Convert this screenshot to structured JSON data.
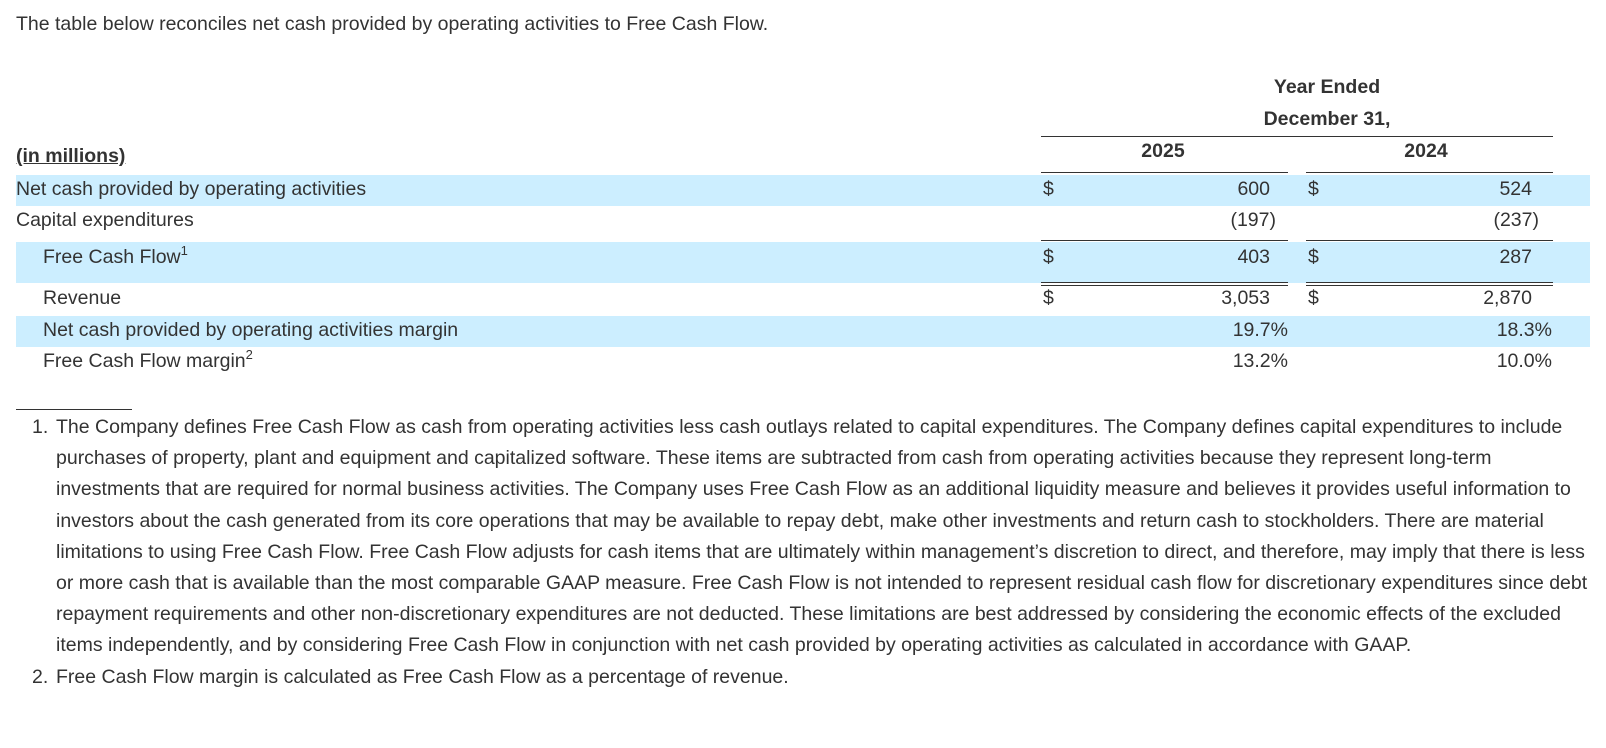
{
  "intro": "The table below reconciles net cash provided by operating activities to Free Cash Flow.",
  "table": {
    "header_line1": "Year Ended",
    "header_line2": "December 31,",
    "years": [
      "2025",
      "2024"
    ],
    "units_label": "(in millions)",
    "rows": [
      {
        "label": "Net cash provided by operating activities",
        "sup": "",
        "d1": "$",
        "v1": "600",
        "d2": "$",
        "v2": "524"
      },
      {
        "label": "Capital expenditures",
        "sup": "",
        "d1": "",
        "v1": "(197)",
        "d2": "",
        "v2": "(237)"
      },
      {
        "label": "Free Cash Flow",
        "sup": "1",
        "d1": "$",
        "v1": "403",
        "d2": "$",
        "v2": "287"
      },
      {
        "label": "Revenue",
        "sup": "",
        "d1": "$",
        "v1": "3,053",
        "d2": "$",
        "v2": "2,870"
      },
      {
        "label": "Net cash provided by operating activities margin",
        "sup": "",
        "d1": "",
        "v1": "19.7%",
        "d2": "",
        "v2": "18.3%"
      },
      {
        "label": "Free Cash Flow margin",
        "sup": "2",
        "d1": "",
        "v1": "13.2%",
        "d2": "",
        "v2": "10.0%"
      }
    ]
  },
  "footnotes": [
    {
      "marker": "1.",
      "text": "The Company defines Free Cash Flow as cash from operating activities less cash outlays related to capital expenditures. The Company defines capital expenditures to include purchases of property, plant and equipment and capitalized software. These items are subtracted from cash from operating activities because they represent long-term investments that are required for normal business activities. The Company uses Free Cash Flow as an additional liquidity measure and believes it provides useful information to investors about the cash generated from its core operations that may be available to repay debt, make other investments and return cash to stockholders. There are material limitations to using Free Cash Flow. Free Cash Flow adjusts for cash items that are ultimately within management’s discretion to direct, and therefore, may imply that there is less or more cash that is available than the most comparable GAAP measure. Free Cash Flow is not intended to represent residual cash flow for discretionary expenditures since debt repayment requirements and other non-discretionary expenditures are not deducted. These limitations are best addressed by considering the economic effects of the excluded items independently, and by considering Free Cash Flow in conjunction with net cash provided by operating activities as calculated in accordance with GAAP."
    },
    {
      "marker": "2.",
      "text": "Free Cash Flow margin is calculated as Free Cash Flow as a percentage of revenue."
    }
  ]
}
